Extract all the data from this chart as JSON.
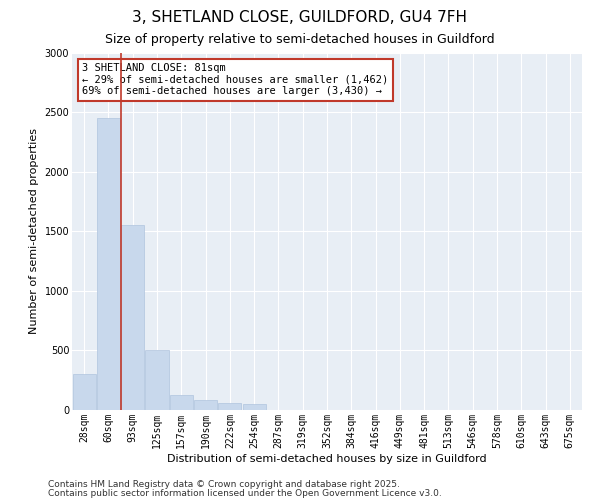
{
  "title1": "3, SHETLAND CLOSE, GUILDFORD, GU4 7FH",
  "title2": "Size of property relative to semi-detached houses in Guildford",
  "xlabel": "Distribution of semi-detached houses by size in Guildford",
  "ylabel": "Number of semi-detached properties",
  "categories": [
    "28sqm",
    "60sqm",
    "93sqm",
    "125sqm",
    "157sqm",
    "190sqm",
    "222sqm",
    "254sqm",
    "287sqm",
    "319sqm",
    "352sqm",
    "384sqm",
    "416sqm",
    "449sqm",
    "481sqm",
    "513sqm",
    "546sqm",
    "578sqm",
    "610sqm",
    "643sqm",
    "675sqm"
  ],
  "values": [
    300,
    2450,
    1550,
    500,
    130,
    80,
    60,
    50,
    0,
    0,
    0,
    0,
    0,
    0,
    0,
    0,
    0,
    0,
    0,
    0,
    0
  ],
  "bar_color": "#c8d8ec",
  "bar_edge_color": "#b0c4de",
  "vline_color": "#c0392b",
  "annotation_text": "3 SHETLAND CLOSE: 81sqm\n← 29% of semi-detached houses are smaller (1,462)\n69% of semi-detached houses are larger (3,430) →",
  "annotation_box_color": "#ffffff",
  "annotation_box_edge_color": "#c0392b",
  "ylim": [
    0,
    3000
  ],
  "yticks": [
    0,
    500,
    1000,
    1500,
    2000,
    2500,
    3000
  ],
  "footer1": "Contains HM Land Registry data © Crown copyright and database right 2025.",
  "footer2": "Contains public sector information licensed under the Open Government Licence v3.0.",
  "bg_color": "#ffffff",
  "plot_bg_color": "#e8eef5",
  "grid_color": "#ffffff",
  "title1_fontsize": 11,
  "title2_fontsize": 9,
  "tick_fontsize": 7,
  "ylabel_fontsize": 8,
  "xlabel_fontsize": 8,
  "annotation_fontsize": 7.5,
  "footer_fontsize": 6.5
}
